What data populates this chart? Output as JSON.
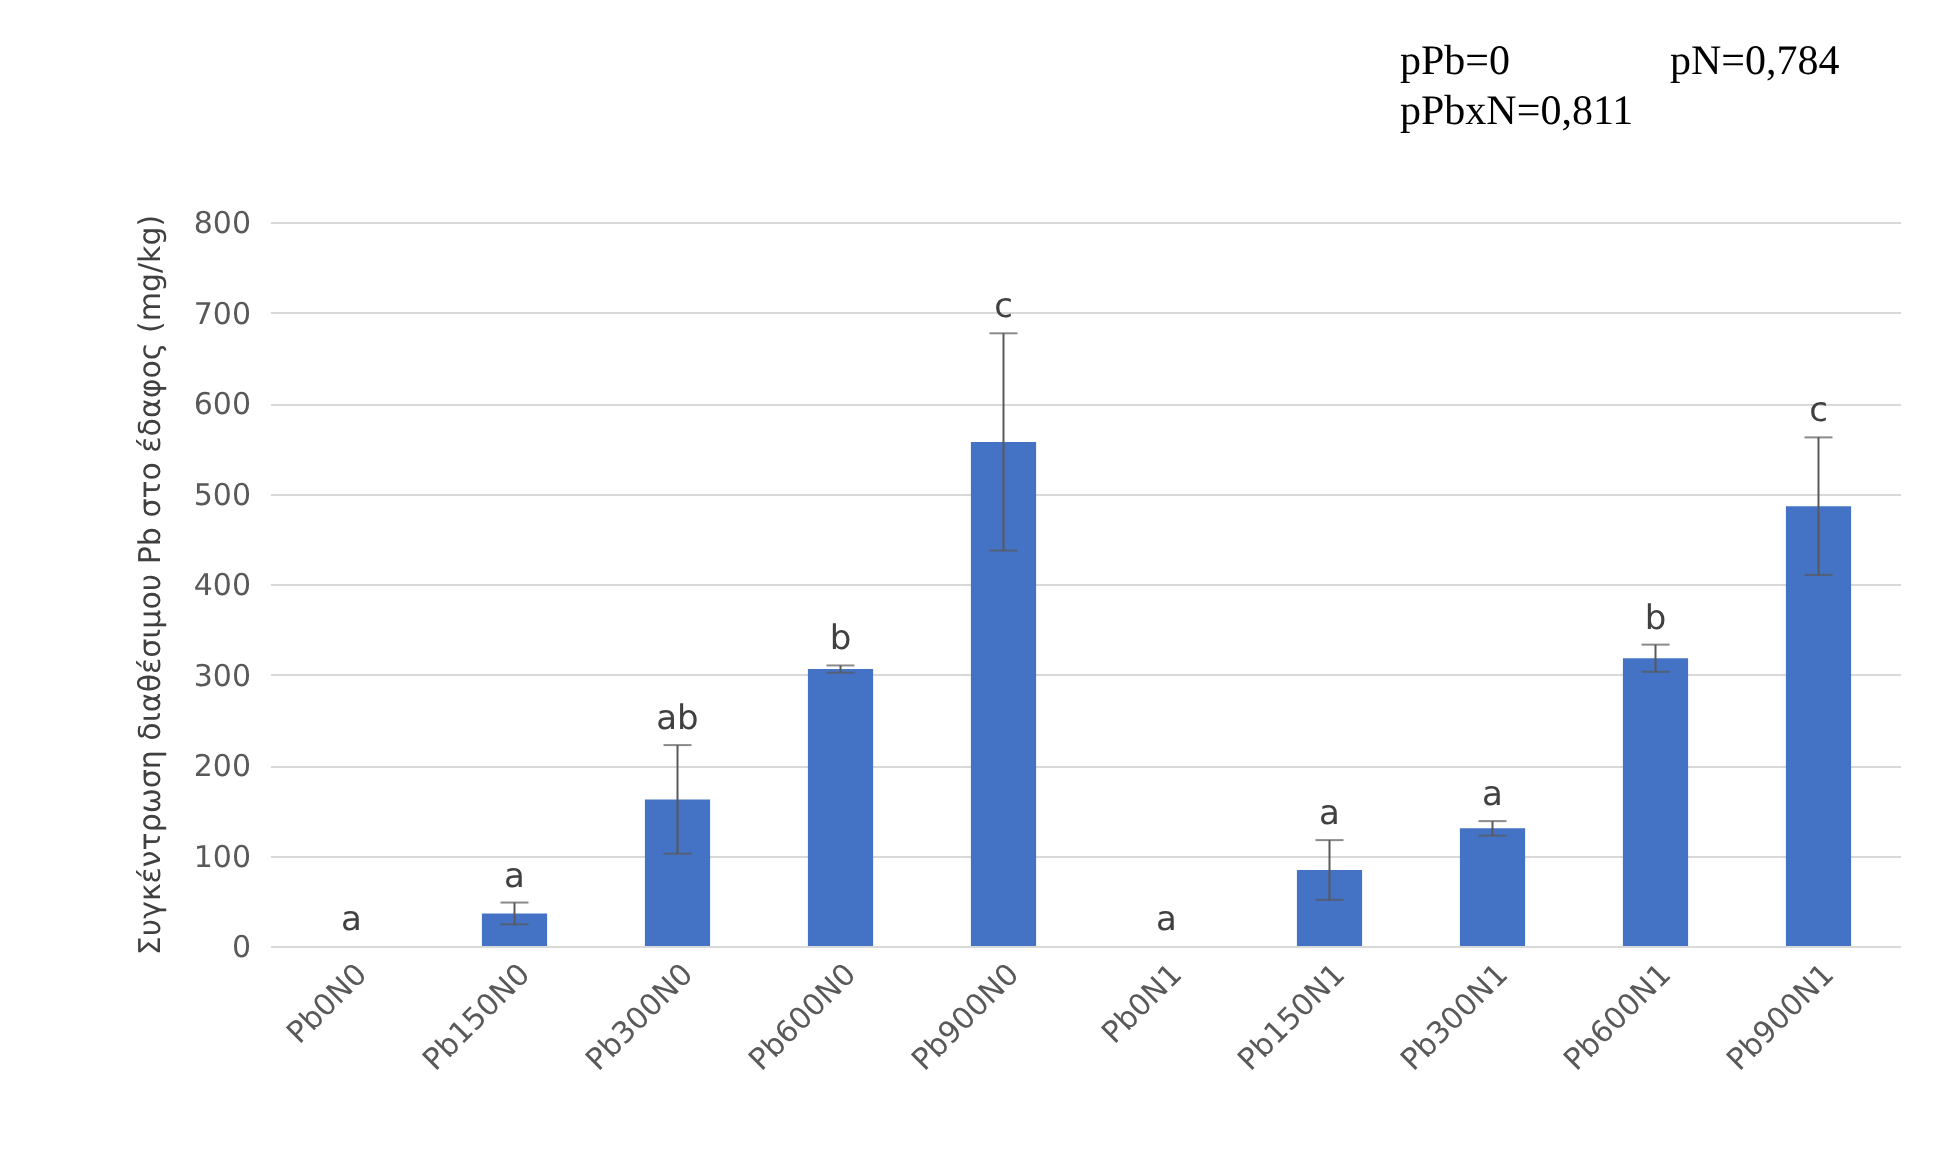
{
  "chart_data": {
    "type": "bar",
    "ylabel": "Συγκέντρωση διαθέσιμου Pb στο έδαφος (mg/kg)",
    "categories": [
      "Pb0N0",
      "Pb150N0",
      "Pb300N0",
      "Pb600N0",
      "Pb900N0",
      "Pb0N1",
      "Pb150N1",
      "Pb300N1",
      "Pb600N1",
      "Pb900N1"
    ],
    "values": [
      0,
      36,
      162,
      306,
      557,
      0,
      84,
      130,
      318,
      486
    ],
    "errors": [
      null,
      12,
      60,
      4,
      120,
      null,
      33,
      8,
      15,
      76
    ],
    "color": "#4472c4",
    "ylim": [
      0,
      800
    ],
    "yticks": [
      0,
      100,
      200,
      300,
      400,
      500,
      600,
      700,
      800
    ],
    "grid": "y",
    "annotations": [
      {
        "text": "a",
        "x": "Pb0N0",
        "y": 0
      },
      {
        "text": "a",
        "x": "Pb150N0",
        "y": 36
      },
      {
        "text": "ab",
        "x": "Pb300N0",
        "y": 162
      },
      {
        "text": "b",
        "x": "Pb600N0",
        "y": 306
      },
      {
        "text": "c",
        "x": "Pb900N0",
        "y": 677
      },
      {
        "text": "a",
        "x": "Pb0N1",
        "y": 0
      },
      {
        "text": "a",
        "x": "Pb150N1",
        "y": 84
      },
      {
        "text": "a",
        "x": "Pb300N1",
        "y": 130
      },
      {
        "text": "b",
        "x": "Pb600N1",
        "y": 318
      },
      {
        "text": "c",
        "x": "Pb900N1",
        "y": 486
      },
      "pPb=0",
      "pN=0,784",
      "pPbxN=0,811"
    ]
  }
}
